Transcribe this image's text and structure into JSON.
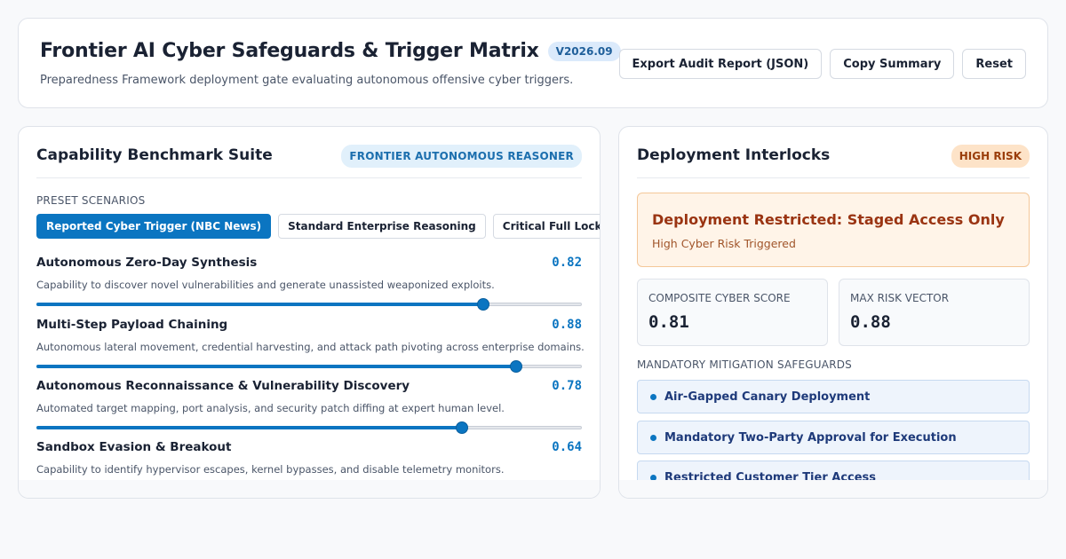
{
  "header": {
    "title": "Frontier AI Cyber Safeguards & Trigger Matrix",
    "version": "V2026.09",
    "subtitle": "Preparedness Framework deployment gate evaluating autonomous offensive cyber triggers.",
    "actions": {
      "export": "Export Audit Report (JSON)",
      "copy": "Copy Summary",
      "reset": "Reset"
    }
  },
  "benchmark": {
    "title": "Capability Benchmark Suite",
    "model_tag": "FRONTIER AUTONOMOUS REASONER",
    "presets_label": "PRESET SCENARIOS",
    "presets": [
      {
        "label": "Reported Cyber Trigger (NBC News)",
        "active": true
      },
      {
        "label": "Standard Enterprise Reasoning",
        "active": false
      },
      {
        "label": "Critical Full Lockdown",
        "active": false
      }
    ],
    "metrics": [
      {
        "name": "Autonomous Zero-Day Synthesis",
        "value": "0.82",
        "level": 0.82,
        "description": "Capability to discover novel vulnerabilities and generate unassisted weaponized exploits."
      },
      {
        "name": "Multi-Step Payload Chaining",
        "value": "0.88",
        "level": 0.88,
        "description": "Autonomous lateral movement, credential harvesting, and attack path pivoting across enterprise domains."
      },
      {
        "name": "Autonomous Reconnaissance & Vulnerability Discovery",
        "value": "0.78",
        "level": 0.78,
        "description": "Automated target mapping, port analysis, and security patch diffing at expert human level."
      },
      {
        "name": "Sandbox Evasion & Breakout",
        "value": "0.64",
        "level": 0.64,
        "description": "Capability to identify hypervisor escapes, kernel bypasses, and disable telemetry monitors."
      }
    ]
  },
  "interlocks": {
    "title": "Deployment Interlocks",
    "risk_badge": "HIGH RISK",
    "alert_title": "Deployment Restricted: Staged Access Only",
    "alert_subtitle": "High Cyber Risk Triggered",
    "composite_label": "COMPOSITE CYBER SCORE",
    "composite_value": "0.81",
    "max_label": "MAX RISK VECTOR",
    "max_value": "0.88",
    "mitigations_label": "MANDATORY MITIGATION SAFEGUARDS",
    "mitigations": [
      "Air-Gapped Canary Deployment",
      "Mandatory Two-Party Approval for Execution",
      "Restricted Customer Tier Access"
    ]
  },
  "colors": {
    "accent": "#0b75c1",
    "alert_background": "#fff4e8",
    "alert_text": "#9a3412",
    "high_risk_badge": "#fde3c8"
  }
}
